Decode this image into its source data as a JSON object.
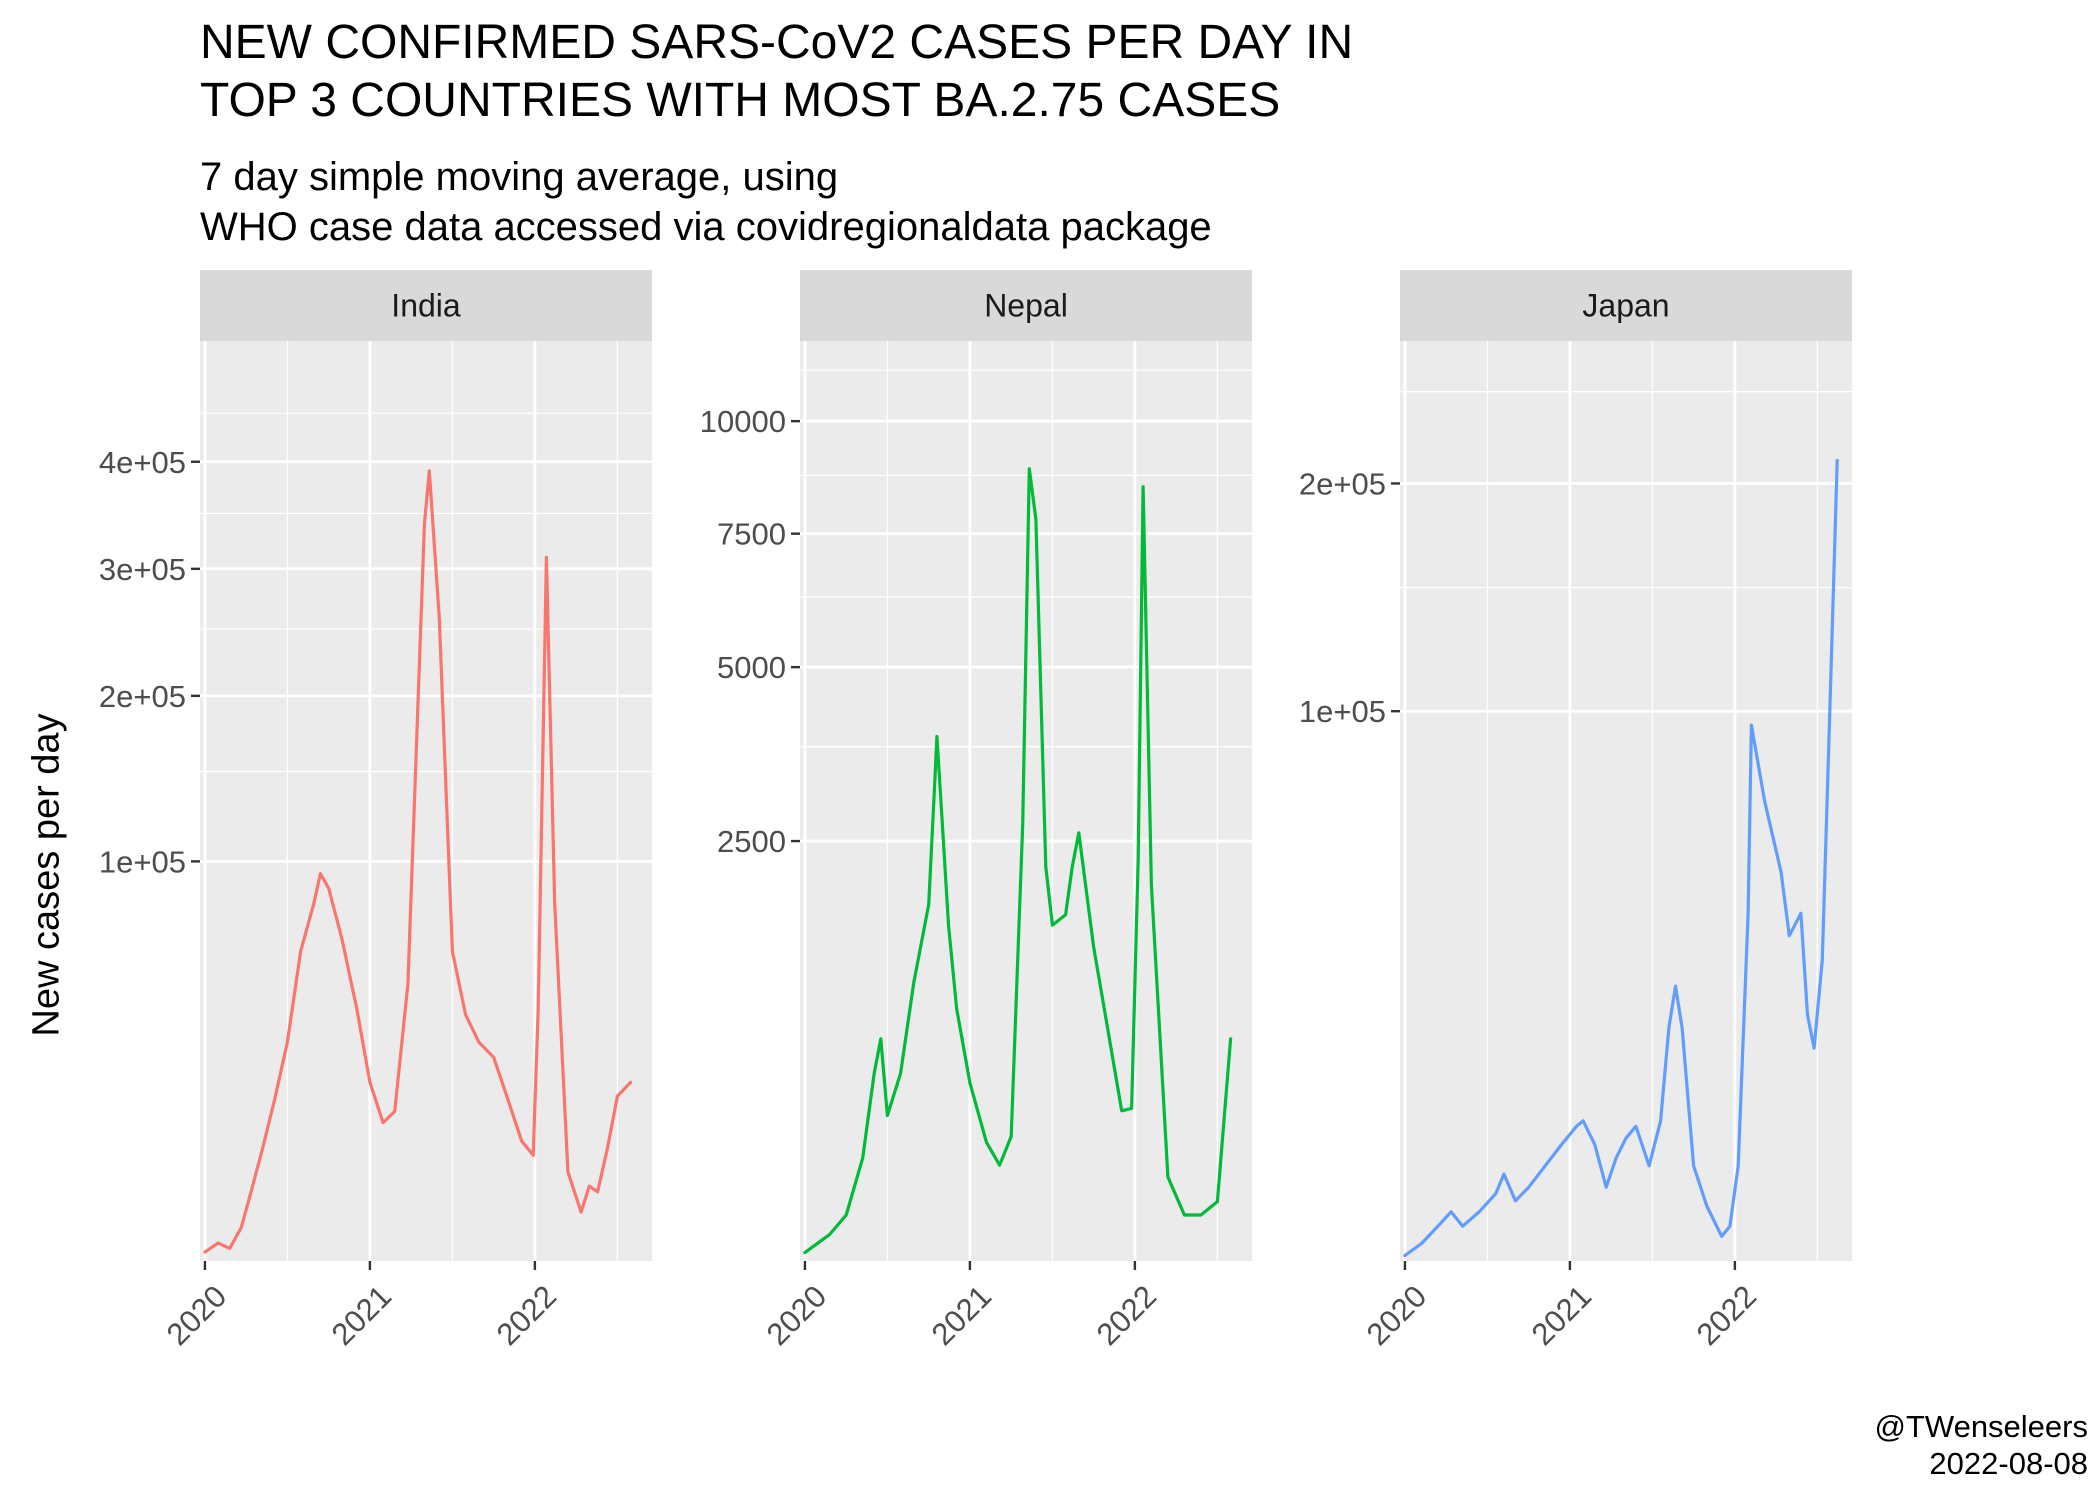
{
  "title": "NEW CONFIRMED SARS-CoV2 CASES PER DAY IN\nTOP 3 COUNTRIES WITH MOST BA.2.75 CASES",
  "subtitle": "7 day simple moving average, using\nWHO case data accessed via covidregionaldata package",
  "caption": "@TWenseleers\n2022-08-08",
  "colors": {
    "India": "#F8766D",
    "Nepal": "#00BA38",
    "Japan": "#619CFF",
    "panel_bg": "#EBEBEB",
    "strip_bg": "#D9D9D9",
    "grid": "#FFFFFF"
  },
  "chart_data": [
    {
      "type": "line",
      "facet": "India",
      "ylabel": "New cases per day",
      "scale": "sqrt",
      "xlim": [
        2019.97,
        2022.71
      ],
      "ylim": [
        0,
        530000
      ],
      "x_ticks": [
        2020,
        2021,
        2022
      ],
      "x_tick_labels": [
        "2020",
        "2021",
        "2022"
      ],
      "y_ticks": [
        100000,
        200000,
        300000,
        400000
      ],
      "y_tick_labels": [
        "1e+05",
        "2e+05",
        "3e+05",
        "4e+05"
      ],
      "color": "#F8766D",
      "x": [
        2020.0,
        2020.08,
        2020.15,
        2020.22,
        2020.28,
        2020.35,
        2020.42,
        2020.5,
        2020.58,
        2020.66,
        2020.7,
        2020.75,
        2020.83,
        2020.92,
        2021.0,
        2021.08,
        2021.15,
        2021.23,
        2021.28,
        2021.33,
        2021.36,
        2021.42,
        2021.5,
        2021.58,
        2021.66,
        2021.75,
        2021.83,
        2021.92,
        2021.99,
        2022.02,
        2022.07,
        2022.12,
        2022.2,
        2022.28,
        2022.33,
        2022.38,
        2022.44,
        2022.5,
        2022.58
      ],
      "y": [
        50,
        200,
        100,
        700,
        3000,
        8000,
        16000,
        30000,
        60000,
        80000,
        94000,
        87000,
        65000,
        40000,
        20000,
        12000,
        14000,
        48000,
        160000,
        340000,
        391000,
        260000,
        60000,
        38000,
        30000,
        26000,
        17000,
        9000,
        7000,
        40000,
        310000,
        80000,
        5000,
        1500,
        3500,
        3000,
        8000,
        17000,
        20000
      ]
    },
    {
      "type": "line",
      "facet": "Nepal",
      "scale": "sqrt",
      "xlim": [
        2019.97,
        2022.71
      ],
      "ylim": [
        0,
        12000
      ],
      "x_ticks": [
        2020,
        2021,
        2022
      ],
      "x_tick_labels": [
        "2020",
        "2021",
        "2022"
      ],
      "y_ticks": [
        2500,
        5000,
        7500,
        10000
      ],
      "y_tick_labels": [
        "2500",
        "5000",
        "7500",
        "10000"
      ],
      "color": "#00BA38",
      "x": [
        2020.0,
        2020.15,
        2020.25,
        2020.35,
        2020.42,
        2020.46,
        2020.5,
        2020.58,
        2020.66,
        2020.75,
        2020.79,
        2020.8,
        2020.83,
        2020.87,
        2020.92,
        2021.0,
        2021.1,
        2021.18,
        2021.25,
        2021.32,
        2021.36,
        2021.4,
        2021.46,
        2021.5,
        2021.58,
        2021.62,
        2021.66,
        2021.75,
        2021.83,
        2021.92,
        2021.98,
        2022.02,
        2022.05,
        2022.1,
        2022.2,
        2022.3,
        2022.4,
        2022.5,
        2022.58
      ],
      "y": [
        1,
        10,
        30,
        150,
        500,
        700,
        300,
        500,
        1100,
        1800,
        3400,
        3900,
        2800,
        1600,
        900,
        450,
        200,
        130,
        220,
        2700,
        8900,
        7800,
        2200,
        1600,
        1700,
        2200,
        2600,
        1400,
        800,
        320,
        330,
        2300,
        8500,
        2000,
        100,
        30,
        30,
        50,
        700
      ]
    },
    {
      "type": "line",
      "facet": "Japan",
      "scale": "sqrt",
      "xlim": [
        2019.97,
        2022.71
      ],
      "ylim": [
        0,
        280000
      ],
      "x_ticks": [
        2020,
        2021,
        2022
      ],
      "x_tick_labels": [
        "2020",
        "2021",
        "2022"
      ],
      "y_ticks": [
        100000,
        200000
      ],
      "y_tick_labels": [
        "1e+05",
        "2e+05"
      ],
      "color": "#619CFF",
      "x": [
        2020.0,
        2020.1,
        2020.2,
        2020.28,
        2020.35,
        2020.45,
        2020.55,
        2020.6,
        2020.67,
        2020.75,
        2020.85,
        2020.95,
        2021.04,
        2021.08,
        2021.15,
        2021.22,
        2021.28,
        2021.34,
        2021.4,
        2021.48,
        2021.55,
        2021.6,
        2021.64,
        2021.68,
        2021.75,
        2021.83,
        2021.92,
        2021.97,
        2022.02,
        2022.08,
        2022.1,
        2022.18,
        2022.28,
        2022.33,
        2022.4,
        2022.44,
        2022.48,
        2022.53,
        2022.58,
        2022.62
      ],
      "y": [
        10,
        100,
        400,
        800,
        400,
        800,
        1500,
        2500,
        1200,
        1800,
        3000,
        4500,
        6000,
        6500,
        4500,
        1800,
        3500,
        5000,
        6000,
        3000,
        6500,
        18000,
        25000,
        18000,
        3000,
        1000,
        200,
        400,
        3000,
        40000,
        95000,
        70000,
        50000,
        35000,
        40000,
        20000,
        15000,
        30000,
        110000,
        212000
      ]
    }
  ]
}
